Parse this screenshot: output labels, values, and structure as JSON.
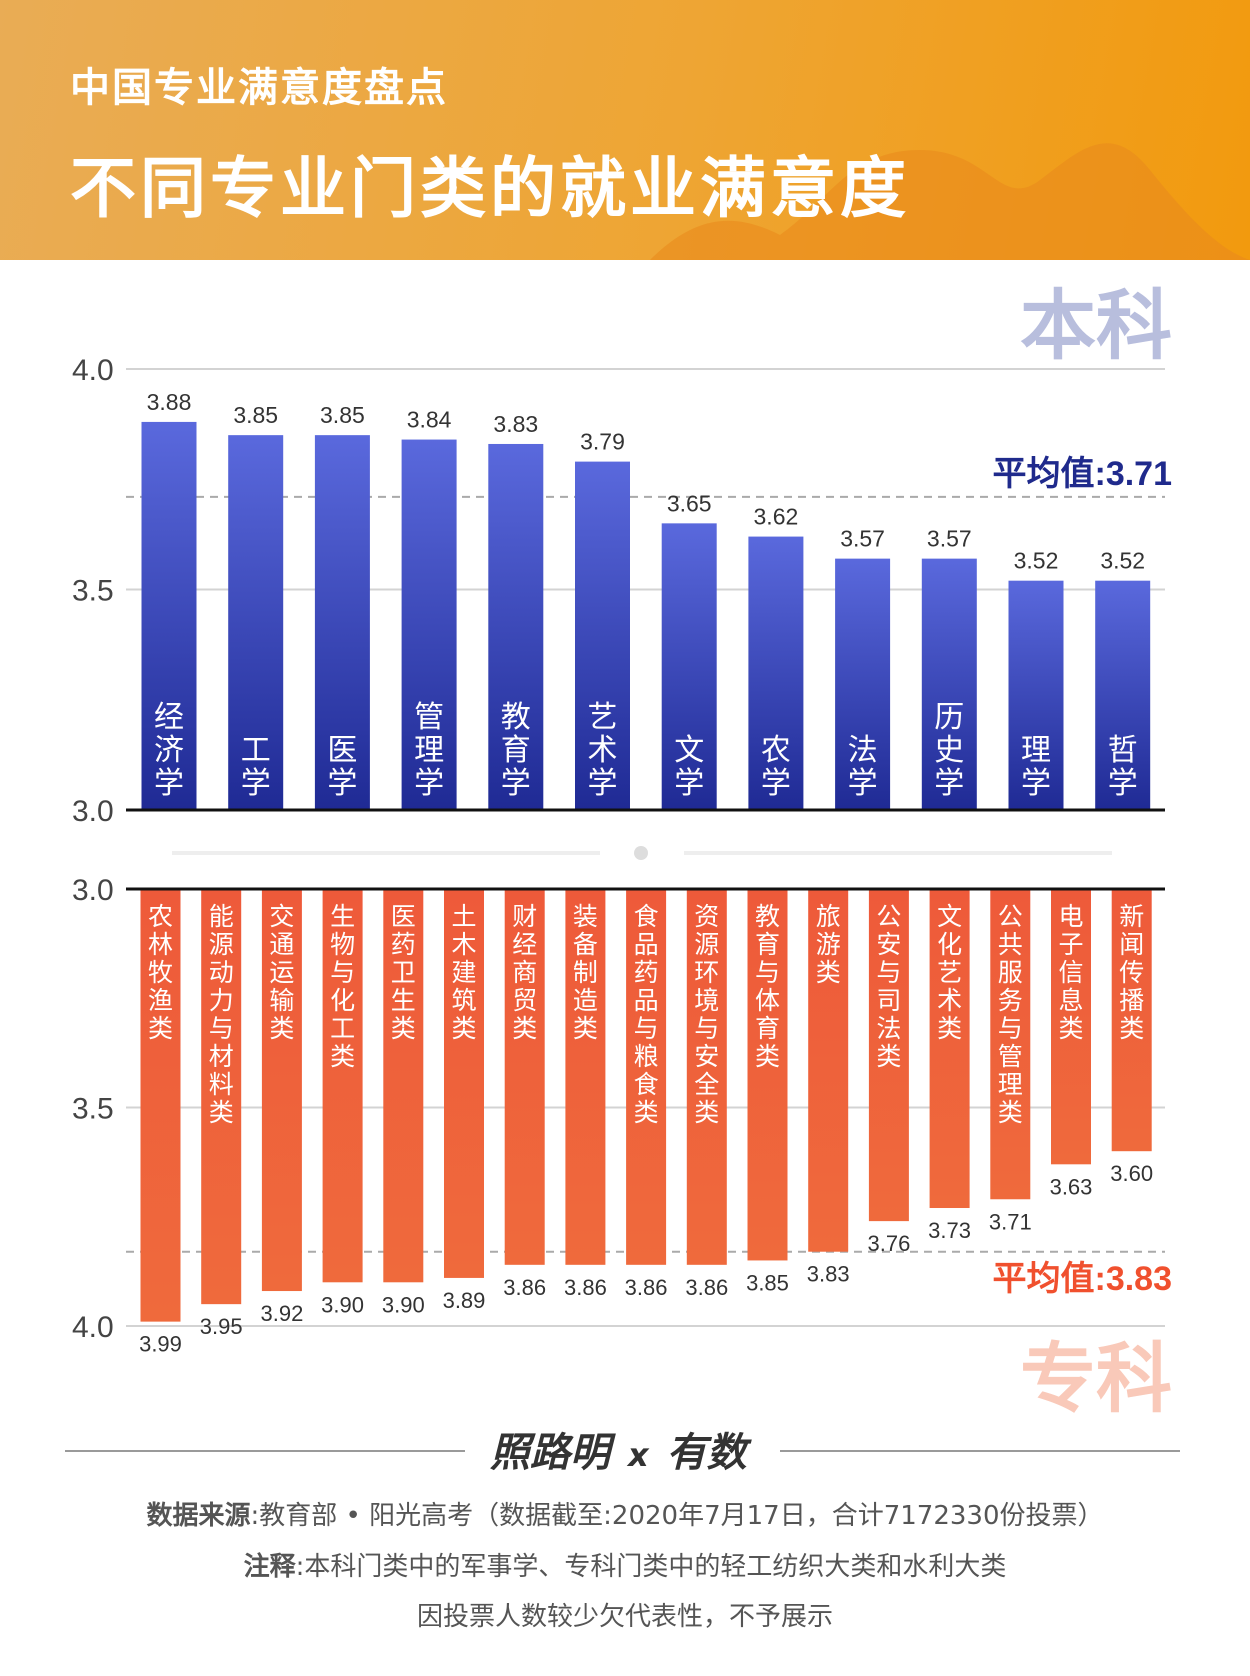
{
  "header": {
    "subtitle": "中国专业满意度盘点",
    "title": "不同专业门类的就业满意度"
  },
  "colors": {
    "undergrad_top": "#5a69dd",
    "undergrad_bottom": "#1f2a94",
    "undergrad_avg": "#1f2a8c",
    "undergrad_tag": "#b8bedd",
    "vocational_bar": "#ee5a3a",
    "vocational_avg": "#f0502e",
    "vocational_tag": "#f9c9b9"
  },
  "chart_data": [
    {
      "type": "bar",
      "tag": "本科",
      "yticks": [
        "4.0",
        "3.5",
        "3.0"
      ],
      "ylim": [
        3.0,
        4.0
      ],
      "grid": true,
      "average": {
        "label": "平均值:3.71",
        "value": 3.71
      },
      "categories": [
        "经济学",
        "工学",
        "医学",
        "管理学",
        "教育学",
        "艺术学",
        "文学",
        "农学",
        "法学",
        "历史学",
        "理学",
        "哲学"
      ],
      "values": [
        3.88,
        3.85,
        3.85,
        3.84,
        3.83,
        3.79,
        3.65,
        3.62,
        3.57,
        3.57,
        3.52,
        3.52
      ],
      "labels": [
        "3.88",
        "3.85",
        "3.85",
        "3.84",
        "3.83",
        "3.79",
        "3.65",
        "3.62",
        "3.57",
        "3.57",
        "3.52",
        "3.52"
      ]
    },
    {
      "type": "bar",
      "tag": "专科",
      "orientation": "inverted",
      "yticks": [
        "3.0",
        "3.5",
        "4.0"
      ],
      "ylim": [
        3.0,
        4.0
      ],
      "grid": true,
      "average": {
        "label": "平均值:3.83",
        "value": 3.83
      },
      "categories": [
        "农林牧渔类",
        "能源动力与材料类",
        "交通运输类",
        "生物与化工类",
        "医药卫生类",
        "土木建筑类",
        "财经商贸类",
        "装备制造类",
        "食品药品与粮食类",
        "资源环境与安全类",
        "教育与体育类",
        "旅游类",
        "公安与司法类",
        "文化艺术类",
        "公共服务与管理类",
        "电子信息类",
        "新闻传播类"
      ],
      "values": [
        3.99,
        3.95,
        3.92,
        3.9,
        3.9,
        3.89,
        3.86,
        3.86,
        3.86,
        3.86,
        3.85,
        3.83,
        3.76,
        3.73,
        3.71,
        3.63,
        3.6
      ],
      "labels": [
        "3.99",
        "3.95",
        "3.92",
        "3.90",
        "3.90",
        "3.89",
        "3.86",
        "3.86",
        "3.86",
        "3.86",
        "3.85",
        "3.83",
        "3.76",
        "3.73",
        "3.71",
        "3.63",
        "3.60"
      ]
    }
  ],
  "footer": {
    "logo_left": "照路明",
    "logo_x": "x",
    "logo_right": "有数",
    "source_label": "数据来源",
    "source_text": ":教育部 • 阳光高考（数据截至:2020年7月17日，合计7172330份投票）",
    "note_label": "注释",
    "note_text": ":本科门类中的军事学、专科门类中的轻工纺织大类和水利大类",
    "note_text2": "因投票人数较少欠代表性，不予展示"
  }
}
